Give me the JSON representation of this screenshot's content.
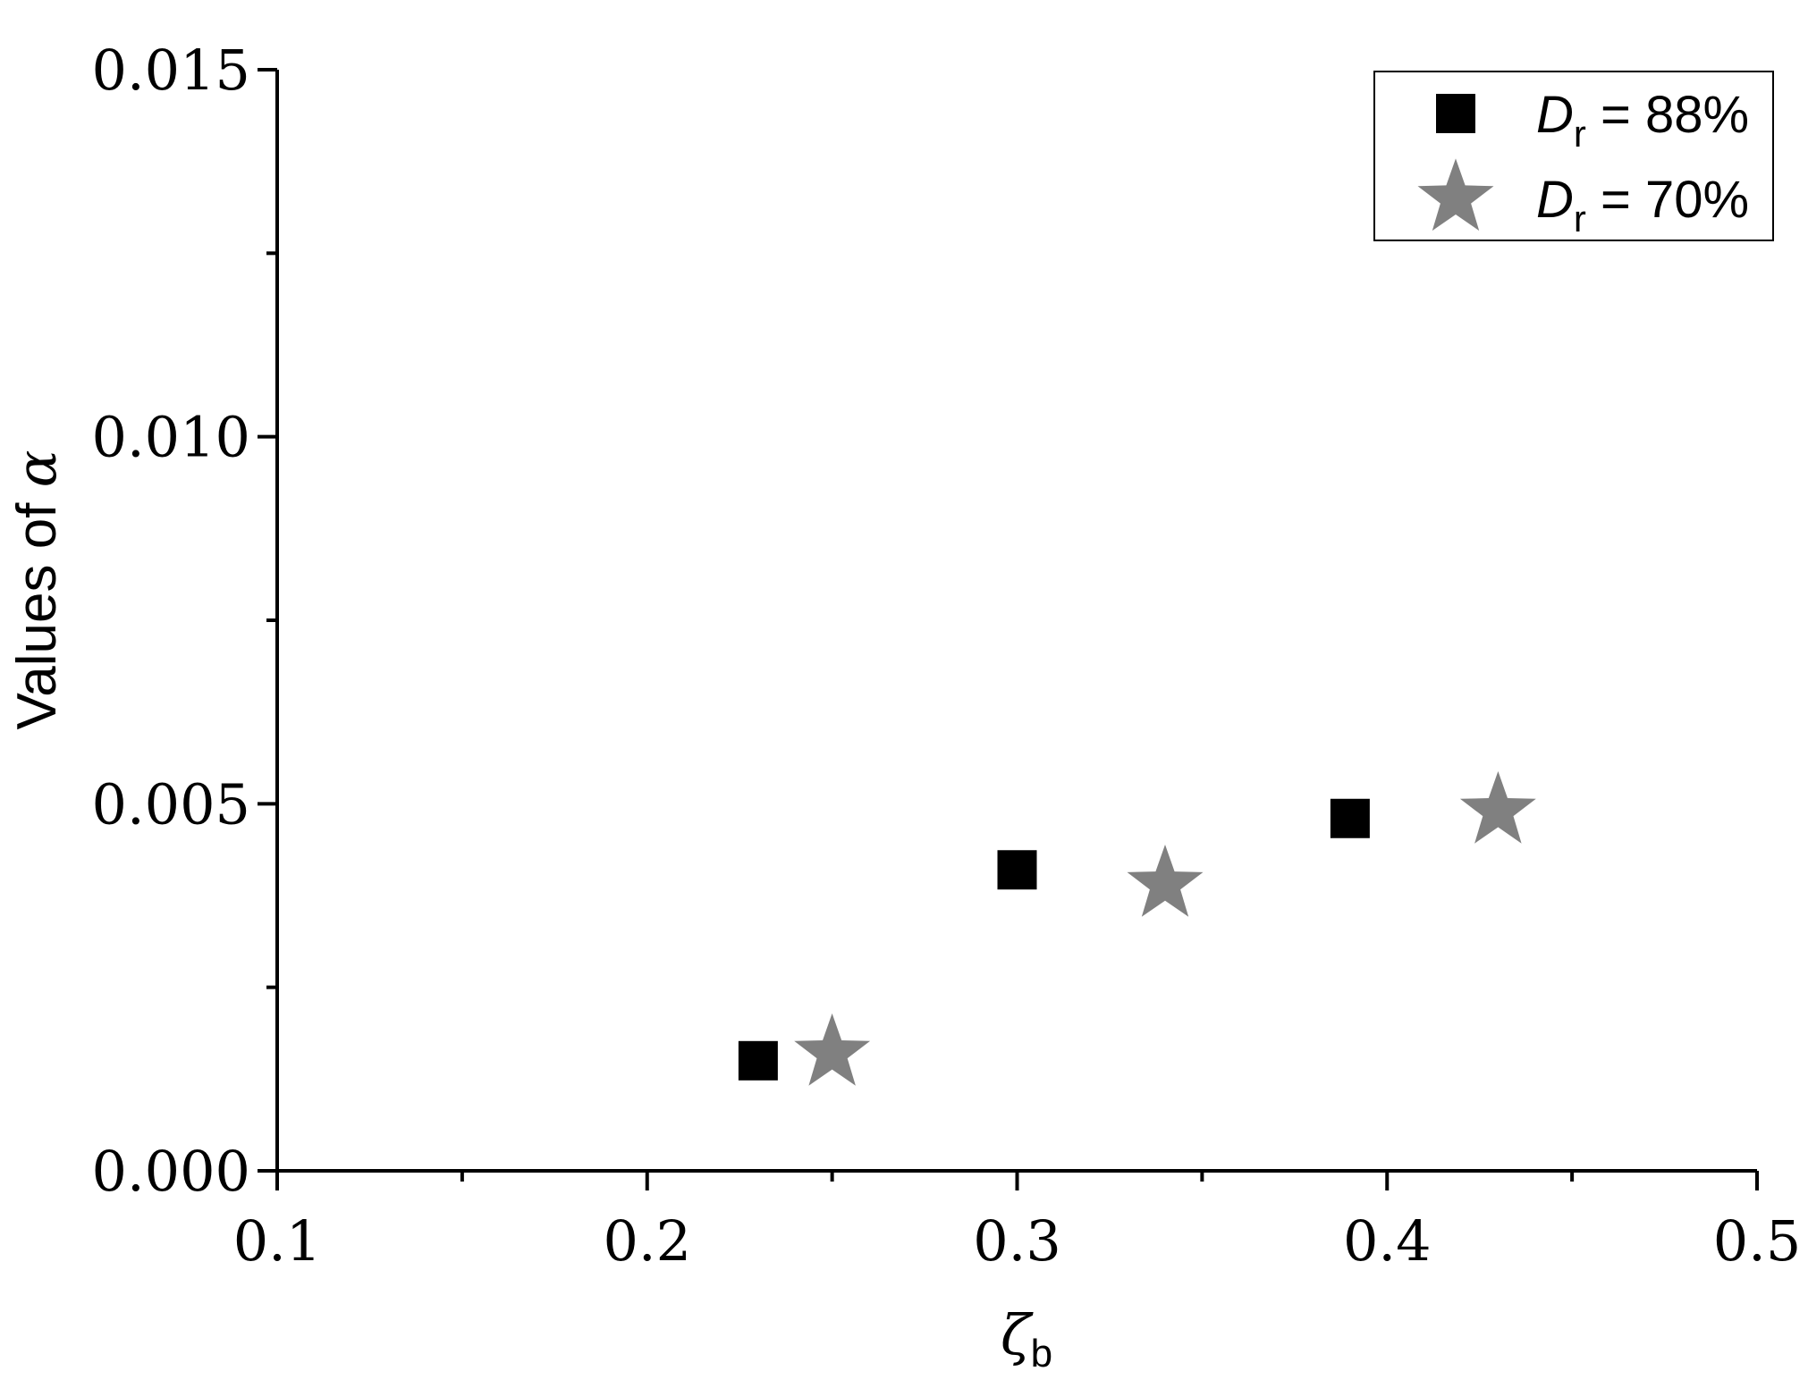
{
  "chart_data": {
    "type": "scatter",
    "xlabel": "ζ",
    "xlabel_sub": "b",
    "ylabel": "Values of ",
    "ylabel_symbol": "α",
    "xlim": [
      0.1,
      0.5
    ],
    "ylim": [
      0,
      0.015
    ],
    "x_ticks": [
      "0.1",
      "0.2",
      "0.3",
      "0.4",
      "0.5"
    ],
    "y_ticks": [
      "0.000",
      "0.005",
      "0.010",
      "0.015"
    ],
    "grid": false,
    "legend_position": "top-right",
    "series": [
      {
        "name": "Dr = 88%",
        "label_main": "D",
        "label_sub": "r",
        "label_rest": " = 88%",
        "marker": "square",
        "color": "#000000",
        "points": [
          {
            "x": 0.23,
            "y": 0.0015
          },
          {
            "x": 0.3,
            "y": 0.0041
          },
          {
            "x": 0.39,
            "y": 0.0048
          }
        ]
      },
      {
        "name": "Dr = 70%",
        "label_main": "D",
        "label_sub": "r",
        "label_rest": " = 70%",
        "marker": "star",
        "color": "#808080",
        "points": [
          {
            "x": 0.25,
            "y": 0.0016
          },
          {
            "x": 0.34,
            "y": 0.0039
          },
          {
            "x": 0.43,
            "y": 0.0049
          }
        ]
      }
    ]
  }
}
